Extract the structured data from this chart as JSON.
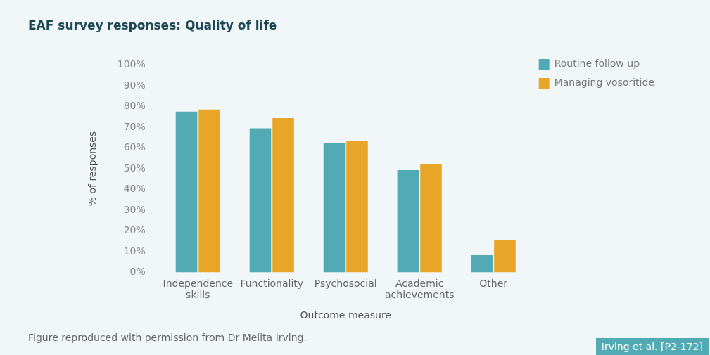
{
  "chart_data": {
    "type": "bar",
    "title": "EAF survey responses: Quality of life",
    "categories": [
      "Independence skills",
      "Functionality",
      "Psychosocial",
      "Academic achievements",
      "Other"
    ],
    "series": [
      {
        "name": "Routine follow up",
        "color": "#52abb4",
        "values": [
          77.5,
          69.5,
          62.5,
          49.3,
          8.3
        ]
      },
      {
        "name": "Managing vosoritide",
        "color": "#e8a628",
        "values": [
          78.5,
          74.4,
          63.5,
          52.3,
          15.6
        ]
      }
    ],
    "xlabel": "Outcome measure",
    "ylabel": "% of responses",
    "ylim": [
      0,
      100
    ],
    "yticks": [
      {
        "value": 0,
        "label": "0%"
      },
      {
        "value": 10,
        "label": "10%"
      },
      {
        "value": 20,
        "label": "20%"
      },
      {
        "value": 30,
        "label": "30%"
      },
      {
        "value": 40,
        "label": "40%"
      },
      {
        "value": 50,
        "label": "50%"
      },
      {
        "value": 60,
        "label": "60%"
      },
      {
        "value": 70,
        "label": "70%"
      },
      {
        "value": 80,
        "label": "80%"
      },
      {
        "value": 90,
        "label": "90%"
      },
      {
        "value": 100,
        "label": "100%"
      }
    ],
    "grid": false,
    "legend": "top right",
    "annotations": [
      "Figure reproduced with permission from Dr Melita Irving.",
      "Irving et al. [P2-172]"
    ]
  }
}
